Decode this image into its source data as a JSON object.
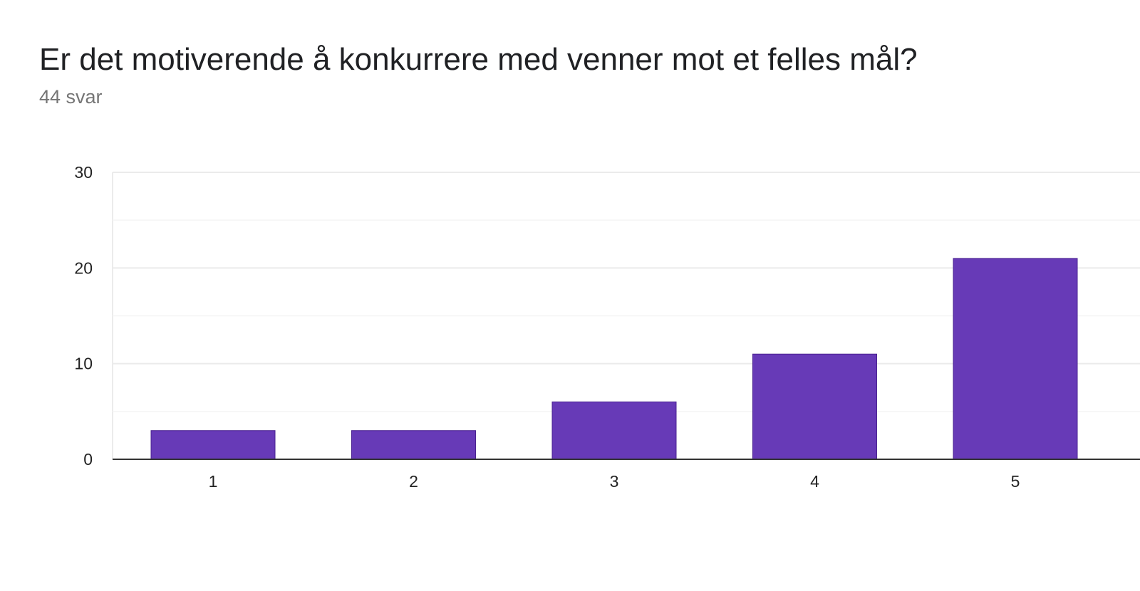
{
  "question": {
    "title": "Er det motiverende å konkurrere med venner mot et felles mål?",
    "responses": "44 svar"
  },
  "colors": {
    "bar": "#673ab7",
    "bar_border": "#4a2290",
    "grid": "#ebebeb",
    "minor_grid": "#f5f5f5",
    "axis": "#333333"
  },
  "chart_data": {
    "type": "bar",
    "categories": [
      "1",
      "2",
      "3",
      "4",
      "5"
    ],
    "values": [
      3,
      3,
      6,
      11,
      21
    ],
    "ylim": [
      0,
      30
    ],
    "yticks": [
      0,
      10,
      20,
      30
    ],
    "grid": true,
    "legend": "none"
  }
}
